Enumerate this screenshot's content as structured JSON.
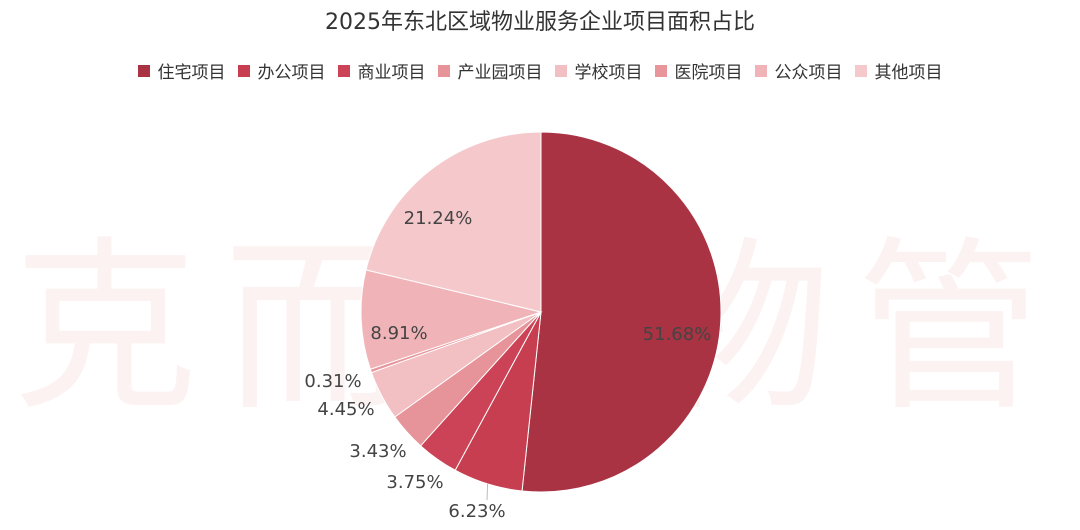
{
  "watermark": "克而瑞物管",
  "chart_data": {
    "type": "pie",
    "title": "2025年东北区域物业服务企业项目面积占比",
    "legend_position": "top",
    "slices": [
      {
        "name": "住宅项目",
        "value": 51.68,
        "label": "51.68%",
        "color": "#A93343"
      },
      {
        "name": "办公项目",
        "value": 6.23,
        "label": "6.23%",
        "color": "#C73E50"
      },
      {
        "name": "商业项目",
        "value": 3.75,
        "label": "3.75%",
        "color": "#CC4256"
      },
      {
        "name": "产业园项目",
        "value": 3.43,
        "label": "3.43%",
        "color": "#E69499"
      },
      {
        "name": "学校项目",
        "value": 4.45,
        "label": "4.45%",
        "color": "#F2BFC3"
      },
      {
        "name": "医院项目",
        "value": 0.31,
        "label": "0.31%",
        "color": "#E8969C"
      },
      {
        "name": "公众项目",
        "value": 8.91,
        "label": "8.91%",
        "color": "#F0B4B8"
      },
      {
        "name": "其他项目",
        "value": 21.24,
        "label": "21.24%",
        "color": "#F5C9CB"
      }
    ]
  }
}
